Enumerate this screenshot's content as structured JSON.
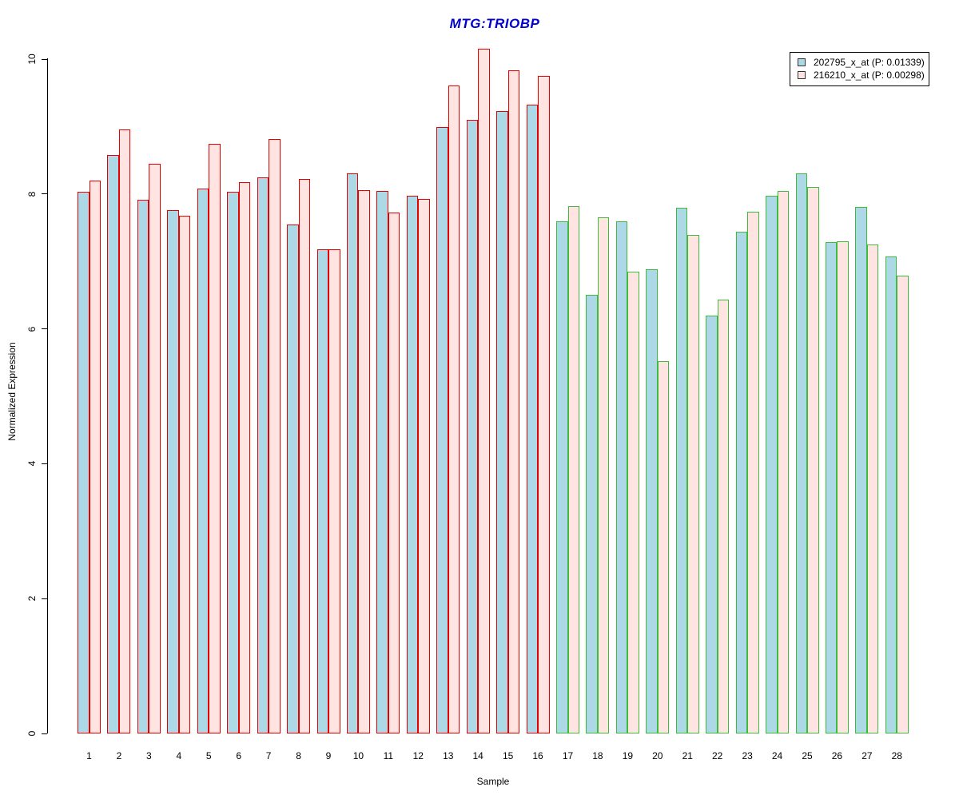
{
  "chart_data": {
    "type": "bar",
    "title": "MTG:TRIOBP",
    "title_color": "#0000CD",
    "xlabel": "Sample",
    "ylabel": "Normalized Expression",
    "ylim": [
      0,
      10.4
    ],
    "yticks": [
      0,
      2,
      4,
      6,
      8,
      10
    ],
    "grid": "off",
    "legend_position": "top-right",
    "categories": [
      "1",
      "2",
      "3",
      "4",
      "5",
      "6",
      "7",
      "8",
      "9",
      "10",
      "11",
      "12",
      "13",
      "14",
      "15",
      "16",
      "17",
      "18",
      "19",
      "20",
      "21",
      "22",
      "23",
      "24",
      "25",
      "26",
      "27",
      "28"
    ],
    "series": [
      {
        "name": "202795_x_at (P: 0.01339)",
        "fill": "#ADD8E6",
        "values": [
          8.03,
          8.58,
          7.91,
          7.76,
          8.08,
          8.03,
          8.25,
          7.55,
          7.18,
          8.31,
          8.05,
          7.98,
          8.99,
          9.1,
          9.23,
          9.33,
          7.59,
          6.5,
          7.59,
          6.88,
          7.8,
          6.2,
          7.44,
          7.97,
          8.31,
          7.29,
          7.81,
          7.07
        ]
      },
      {
        "name": "216210_x_at (P: 0.00298)",
        "fill": "#FFE4E1",
        "values": [
          8.2,
          8.96,
          8.45,
          7.68,
          8.75,
          8.18,
          8.82,
          8.22,
          7.18,
          8.06,
          7.72,
          7.93,
          9.61,
          10.16,
          9.84,
          9.75,
          7.82,
          7.65,
          6.85,
          5.52,
          7.39,
          6.43,
          7.74,
          8.04,
          8.11,
          7.3,
          7.25,
          6.79
        ]
      }
    ],
    "group_border": {
      "red_through_sample": 16,
      "red": "#E60000",
      "green": "#3CBB3C"
    }
  }
}
